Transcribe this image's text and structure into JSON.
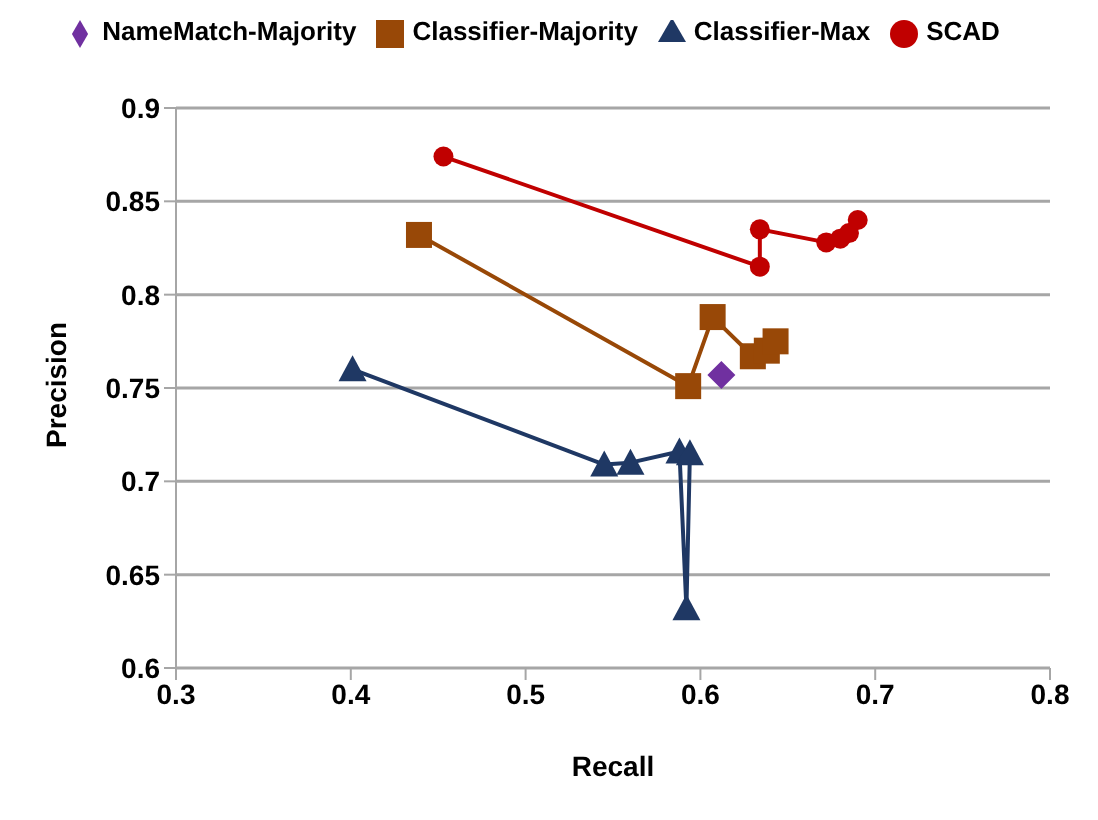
{
  "chart_data": {
    "type": "line",
    "xlabel": "Recall",
    "ylabel": "Precision",
    "xlim": [
      0.3,
      0.8
    ],
    "xticks": [
      0.3,
      0.4,
      0.5,
      0.6,
      0.7,
      0.8
    ],
    "ylim": [
      0.6,
      0.9
    ],
    "yticks": [
      0.6,
      0.65,
      0.7,
      0.75,
      0.8,
      0.85,
      0.9
    ],
    "grid": "y",
    "legend": "top",
    "series": [
      {
        "name": "NameMatch-Majority",
        "color": "#7030a0",
        "marker": "diamond",
        "x": [
          0.612
        ],
        "values": [
          0.757
        ]
      },
      {
        "name": "Classifier-Majority",
        "color": "#984807",
        "marker": "square",
        "x": [
          0.439,
          0.593,
          0.607,
          0.63,
          0.638,
          0.643
        ],
        "values": [
          0.832,
          0.751,
          0.788,
          0.767,
          0.77,
          0.775
        ]
      },
      {
        "name": "Classifier-Max",
        "color": "#1f3864",
        "marker": "triangle",
        "x": [
          0.401,
          0.545,
          0.56,
          0.588,
          0.592,
          0.594
        ],
        "values": [
          0.76,
          0.709,
          0.71,
          0.716,
          0.632,
          0.715
        ]
      },
      {
        "name": "SCAD",
        "color": "#c00000",
        "marker": "circle",
        "x": [
          0.453,
          0.634,
          0.634,
          0.672,
          0.68,
          0.685,
          0.69
        ],
        "values": [
          0.874,
          0.815,
          0.835,
          0.828,
          0.83,
          0.833,
          0.84
        ]
      }
    ]
  }
}
